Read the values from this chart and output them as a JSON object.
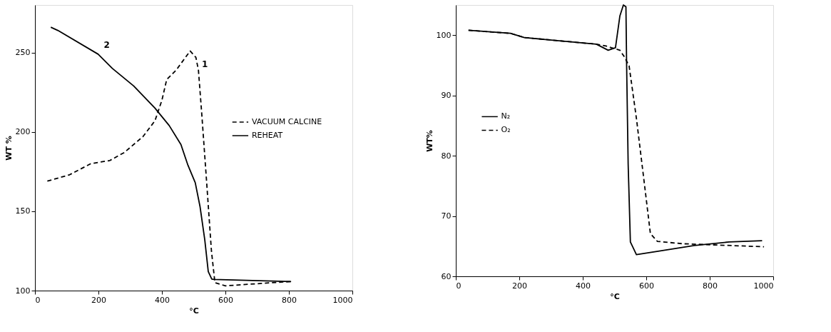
{
  "chart_data": [
    {
      "type": "line",
      "xlabel": "°C",
      "ylabel": "WT %",
      "xlim": [
        0,
        1000
      ],
      "ylim": [
        100,
        280
      ],
      "xticks": [
        0,
        200,
        400,
        600,
        800,
        1000
      ],
      "yticks": [
        100,
        150,
        200,
        250
      ],
      "grid": false,
      "legend": "right",
      "marker": "none",
      "annotations": [
        {
          "text": "2",
          "x": 206,
          "y": 251
        },
        {
          "text": "1",
          "x": 515,
          "y": 239
        }
      ],
      "series": [
        {
          "name": "VACUUM CALCINE",
          "color": "#000000",
          "line_style": "dashed",
          "x": [
            39,
            109,
            176,
            236,
            281,
            340,
            378,
            400,
            415,
            445,
            489,
            507,
            515,
            526,
            541,
            556,
            567,
            600,
            748,
            807
          ],
          "values": [
            169,
            173,
            180,
            182,
            187,
            197,
            207,
            220,
            233,
            239,
            251,
            247,
            239,
            210,
            168,
            125,
            105,
            103,
            105,
            105.7
          ]
        },
        {
          "name": "REHEAT",
          "color": "#000000",
          "line_style": "solid",
          "x": [
            50,
            72,
            199,
            244,
            311,
            378,
            423,
            460,
            482,
            505,
            520,
            535,
            546,
            557,
            564,
            807
          ],
          "values": [
            266,
            264,
            249,
            240,
            229,
            215,
            204,
            192,
            179,
            168,
            153,
            132,
            112,
            107.3,
            107,
            105.7
          ]
        }
      ]
    },
    {
      "type": "line",
      "xlabel": "°C",
      "ylabel": "WT%",
      "xlim": [
        0,
        1000
      ],
      "ylim": [
        60,
        105
      ],
      "xticks": [
        0,
        200,
        400,
        600,
        800,
        1000
      ],
      "yticks": [
        60,
        70,
        80,
        90,
        100
      ],
      "grid": false,
      "legend": "left",
      "marker": "none",
      "series": [
        {
          "name": "N₂",
          "color": "#000000",
          "line_style": "solid",
          "x": [
            40,
            172,
            216,
            443,
            480,
            503,
            517,
            528,
            536,
            538,
            543,
            550,
            569,
            641,
            751,
            861,
            965
          ],
          "values": [
            100.8,
            100.3,
            99.6,
            98.5,
            97.5,
            97.9,
            103.2,
            105,
            104.7,
            95.6,
            78.6,
            65.7,
            63.6,
            64.2,
            65.1,
            65.7,
            65.9
          ]
        },
        {
          "name": "O₂",
          "color": "#000000",
          "line_style": "dashed",
          "x": [
            40,
            172,
            216,
            443,
            473,
            517,
            531,
            546,
            569,
            591,
            613,
            635,
            715,
            971
          ],
          "values": [
            100.8,
            100.3,
            99.6,
            98.5,
            98.2,
            97.5,
            96.4,
            94.9,
            86.2,
            76.7,
            67.1,
            65.8,
            65.4,
            64.9
          ]
        }
      ]
    }
  ]
}
